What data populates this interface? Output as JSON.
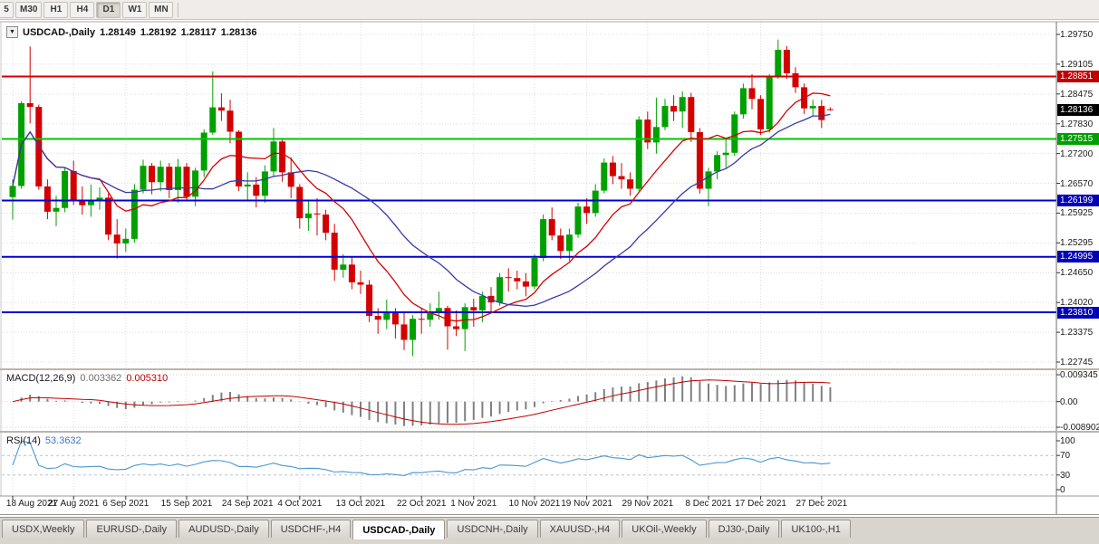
{
  "toolbar": {
    "timeframes": [
      "5",
      "M30",
      "H1",
      "H4",
      "D1",
      "W1",
      "MN"
    ],
    "active_timeframe": "D1"
  },
  "chart": {
    "dropdown_icon": "▼",
    "title": "USDCAD-,Daily",
    "open": "1.28149",
    "high": "1.28192",
    "low": "1.28117",
    "close": "1.28136",
    "levels": [
      {
        "price": 1.28851,
        "label": "1.28851",
        "line_color": "#D40000",
        "tag_color": "#C00000"
      },
      {
        "price": 1.27515,
        "label": "1.27515",
        "line_color": "#00C400",
        "tag_color": "#00A000"
      },
      {
        "price": 1.26199,
        "label": "1.26199",
        "line_color": "#0000D4",
        "tag_color": "#0000B8"
      },
      {
        "price": 1.24995,
        "label": "1.24995",
        "line_color": "#0000D4",
        "tag_color": "#0000B8"
      },
      {
        "price": 1.2381,
        "label": "1.23810",
        "line_color": "#0000D4",
        "tag_color": "#0000B8"
      }
    ],
    "current_price_tag": {
      "price": 1.28136,
      "label": "1.28136",
      "tag_color": "#000000"
    }
  },
  "macd": {
    "name": "MACD(12,26,9)",
    "value": "0.003362",
    "signal": "0.005310",
    "y_labels": [
      "0.009345",
      "0.00",
      "-0.008902"
    ],
    "axis_max": 0.009345,
    "axis_min": -0.008902,
    "histogram_color": "#808080",
    "signal_color": "#C00000"
  },
  "rsi": {
    "name": "RSI(14)",
    "value": "53.3632",
    "y_labels": [
      "100",
      "70",
      "30",
      "0"
    ],
    "level_lines": [
      70,
      30
    ],
    "line_color": "#4B96D1"
  },
  "tabs": {
    "active": "USDCAD-,Daily",
    "items": [
      "USDX,Weekly",
      "EURUSD-,Daily",
      "AUDUSD-,Daily",
      "USDCHF-,H4",
      "USDCAD-,Daily",
      "USDCNH-,Daily",
      "XAUUSD-,H4",
      "UKOil-,Weekly",
      "DJ30-,Daily",
      "UK100-,H1"
    ]
  },
  "chart_data": {
    "type": "candlestick",
    "title": "USDCAD-,Daily",
    "y_axis_range": [
      1.22745,
      1.2975
    ],
    "y_tick_labels": [
      "1.29750",
      "1.29105",
      "1.28475",
      "1.27830",
      "1.27200",
      "1.26570",
      "1.25925",
      "1.25295",
      "1.24650",
      "1.24020",
      "1.23375",
      "1.22745"
    ],
    "x_tick_labels": [
      "18 Aug 2021",
      "27 Aug 2021",
      "6 Sep 2021",
      "15 Sep 2021",
      "24 Sep 2021",
      "4 Oct 2021",
      "13 Oct 2021",
      "22 Oct 2021",
      "1 Nov 2021",
      "10 Nov 2021",
      "19 Nov 2021",
      "29 Nov 2021",
      "8 Dec 2021",
      "17 Dec 2021",
      "27 Dec 2021"
    ],
    "colors": {
      "up": "#00A000",
      "down": "#D40000"
    },
    "moving_averages": [
      {
        "type": "sma",
        "period": 10,
        "color": "#D40000"
      },
      {
        "type": "sma",
        "period": 21,
        "color": "#3838A8"
      }
    ],
    "horizontal_levels": [
      1.28851,
      1.27515,
      1.26199,
      1.24995,
      1.2381
    ],
    "last_price": 1.28136,
    "last_bar_ohlc": [
      1.28149,
      1.28192,
      1.28117,
      1.28136
    ],
    "indicators": [
      {
        "name": "MACD",
        "params": [
          12,
          26,
          9
        ],
        "value": 0.003362,
        "signal": 0.00531,
        "axis_range": [
          -0.008902,
          0.009345
        ]
      },
      {
        "name": "RSI",
        "params": [
          14
        ],
        "value": 53.3632,
        "axis_range": [
          0,
          100
        ],
        "levels": [
          30,
          70
        ]
      }
    ],
    "candles_ohlc": [
      [
        1.2627,
        1.2665,
        1.2579,
        1.2651
      ],
      [
        1.2651,
        1.2832,
        1.2645,
        1.2828
      ],
      [
        1.2828,
        1.2949,
        1.2785,
        1.282
      ],
      [
        1.282,
        1.2825,
        1.2643,
        1.265
      ],
      [
        1.265,
        1.2665,
        1.258,
        1.2596
      ],
      [
        1.2596,
        1.263,
        1.2565,
        1.2604
      ],
      [
        1.2604,
        1.269,
        1.2595,
        1.2683
      ],
      [
        1.2683,
        1.2705,
        1.261,
        1.262
      ],
      [
        1.262,
        1.265,
        1.259,
        1.261
      ],
      [
        1.261,
        1.2654,
        1.2585,
        1.262
      ],
      [
        1.262,
        1.2648,
        1.26,
        1.2626
      ],
      [
        1.2626,
        1.2635,
        1.2535,
        1.2547
      ],
      [
        1.2547,
        1.258,
        1.2496,
        1.2528
      ],
      [
        1.2528,
        1.256,
        1.251,
        1.2538
      ],
      [
        1.2538,
        1.2655,
        1.253,
        1.2643
      ],
      [
        1.2643,
        1.2707,
        1.2635,
        1.2694
      ],
      [
        1.2694,
        1.27,
        1.2633,
        1.2659
      ],
      [
        1.2659,
        1.2705,
        1.264,
        1.2692
      ],
      [
        1.2692,
        1.27,
        1.2625,
        1.2642
      ],
      [
        1.2642,
        1.2709,
        1.2615,
        1.2692
      ],
      [
        1.2692,
        1.27,
        1.262,
        1.2628
      ],
      [
        1.2628,
        1.269,
        1.2608,
        1.2684
      ],
      [
        1.2684,
        1.2772,
        1.267,
        1.2765
      ],
      [
        1.2765,
        1.2896,
        1.276,
        1.2819
      ],
      [
        1.2819,
        1.2849,
        1.279,
        1.2812
      ],
      [
        1.2812,
        1.2835,
        1.2742,
        1.2767
      ],
      [
        1.2767,
        1.277,
        1.264,
        1.265
      ],
      [
        1.265,
        1.268,
        1.262,
        1.2654
      ],
      [
        1.2654,
        1.267,
        1.2605,
        1.263
      ],
      [
        1.263,
        1.2695,
        1.2615,
        1.2682
      ],
      [
        1.2682,
        1.2775,
        1.267,
        1.2746
      ],
      [
        1.2746,
        1.275,
        1.266,
        1.268
      ],
      [
        1.268,
        1.2712,
        1.2625,
        1.2649
      ],
      [
        1.2649,
        1.2655,
        1.256,
        1.2582
      ],
      [
        1.2582,
        1.262,
        1.2555,
        1.2592
      ],
      [
        1.2592,
        1.2625,
        1.2545,
        1.259
      ],
      [
        1.259,
        1.26,
        1.2535,
        1.2551
      ],
      [
        1.2551,
        1.257,
        1.2448,
        1.2472
      ],
      [
        1.2472,
        1.2505,
        1.2455,
        1.2483
      ],
      [
        1.2483,
        1.25,
        1.243,
        1.2445
      ],
      [
        1.2445,
        1.247,
        1.242,
        1.244
      ],
      [
        1.244,
        1.245,
        1.236,
        1.2373
      ],
      [
        1.2373,
        1.239,
        1.2335,
        1.2365
      ],
      [
        1.2365,
        1.2408,
        1.2345,
        1.238
      ],
      [
        1.238,
        1.239,
        1.2325,
        1.2355
      ],
      [
        1.2355,
        1.238,
        1.23,
        1.2322
      ],
      [
        1.2322,
        1.2375,
        1.2287,
        1.2367
      ],
      [
        1.2367,
        1.239,
        1.2335,
        1.2365
      ],
      [
        1.2365,
        1.24,
        1.235,
        1.2381
      ],
      [
        1.2381,
        1.2425,
        1.2365,
        1.239
      ],
      [
        1.239,
        1.2395,
        1.2301,
        1.2351
      ],
      [
        1.2351,
        1.2385,
        1.233,
        1.2345
      ],
      [
        1.2345,
        1.24,
        1.2298,
        1.2392
      ],
      [
        1.2392,
        1.241,
        1.235,
        1.2385
      ],
      [
        1.2385,
        1.2425,
        1.236,
        1.2416
      ],
      [
        1.2416,
        1.2435,
        1.238,
        1.2402
      ],
      [
        1.2402,
        1.2465,
        1.2395,
        1.2456
      ],
      [
        1.2456,
        1.2475,
        1.2425,
        1.2454
      ],
      [
        1.2454,
        1.247,
        1.243,
        1.2447
      ],
      [
        1.2447,
        1.2465,
        1.2415,
        1.2436
      ],
      [
        1.2436,
        1.2505,
        1.243,
        1.2497
      ],
      [
        1.2497,
        1.259,
        1.249,
        1.258
      ],
      [
        1.258,
        1.2605,
        1.2535,
        1.2545
      ],
      [
        1.2545,
        1.256,
        1.2495,
        1.2512
      ],
      [
        1.2512,
        1.256,
        1.249,
        1.2547
      ],
      [
        1.2547,
        1.2615,
        1.254,
        1.2607
      ],
      [
        1.2607,
        1.2625,
        1.257,
        1.2593
      ],
      [
        1.2593,
        1.2655,
        1.2585,
        1.2641
      ],
      [
        1.2641,
        1.271,
        1.2635,
        1.2701
      ],
      [
        1.2701,
        1.2715,
        1.2655,
        1.2672
      ],
      [
        1.2672,
        1.27,
        1.2645,
        1.2665
      ],
      [
        1.2665,
        1.268,
        1.263,
        1.2645
      ],
      [
        1.2645,
        1.28,
        1.264,
        1.2793
      ],
      [
        1.2793,
        1.281,
        1.273,
        1.2744
      ],
      [
        1.2744,
        1.284,
        1.272,
        1.2777
      ],
      [
        1.2777,
        1.2837,
        1.277,
        1.2822
      ],
      [
        1.2822,
        1.2845,
        1.279,
        1.281
      ],
      [
        1.281,
        1.2853,
        1.2775,
        1.2841
      ],
      [
        1.2841,
        1.285,
        1.2745,
        1.2766
      ],
      [
        1.2766,
        1.2775,
        1.2635,
        1.2645
      ],
      [
        1.2645,
        1.269,
        1.2608,
        1.2682
      ],
      [
        1.2682,
        1.2725,
        1.2665,
        1.2717
      ],
      [
        1.2717,
        1.275,
        1.269,
        1.2722
      ],
      [
        1.2722,
        1.281,
        1.2715,
        1.2804
      ],
      [
        1.2804,
        1.287,
        1.2795,
        1.286
      ],
      [
        1.286,
        1.289,
        1.2815,
        1.2837
      ],
      [
        1.2837,
        1.2845,
        1.276,
        1.2772
      ],
      [
        1.2772,
        1.289,
        1.2765,
        1.2886
      ],
      [
        1.2886,
        1.2964,
        1.288,
        1.2942
      ],
      [
        1.2942,
        1.295,
        1.288,
        1.2892
      ],
      [
        1.2892,
        1.2905,
        1.285,
        1.2862
      ],
      [
        1.2862,
        1.287,
        1.2805,
        1.2817
      ],
      [
        1.2817,
        1.2835,
        1.28,
        1.2822
      ],
      [
        1.2822,
        1.2835,
        1.2775,
        1.2792
      ],
      [
        1.28149,
        1.28192,
        1.28117,
        1.28136
      ]
    ]
  }
}
